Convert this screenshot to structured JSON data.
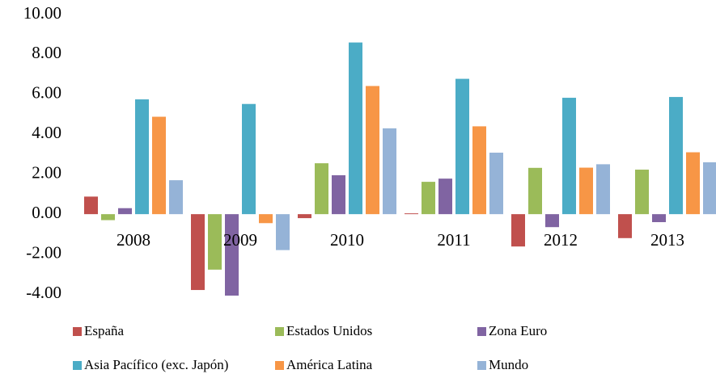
{
  "chart_data": {
    "type": "bar",
    "categories": [
      "2008",
      "2009",
      "2010",
      "2011",
      "2012",
      "2013"
    ],
    "series": [
      {
        "name": "España",
        "color": "#c0504d",
        "values": [
          0.88,
          -3.8,
          -0.2,
          0.04,
          -1.62,
          -1.2
        ]
      },
      {
        "name": "Estados Unidos",
        "color": "#9bbb59",
        "values": [
          -0.3,
          -2.78,
          2.55,
          1.62,
          2.32,
          2.23
        ]
      },
      {
        "name": "Zona Euro",
        "color": "#8064a2",
        "values": [
          0.3,
          -4.08,
          1.95,
          1.78,
          -0.65,
          -0.4
        ]
      },
      {
        "name": "Asia Pacífico (exc. Japón)",
        "color": "#4bacc6",
        "values": [
          5.75,
          5.52,
          8.6,
          6.78,
          5.83,
          5.87
        ]
      },
      {
        "name": "América Latina",
        "color": "#f79646",
        "values": [
          4.88,
          -0.45,
          6.42,
          4.4,
          2.33,
          3.1
        ]
      },
      {
        "name": "Mundo",
        "color": "#95b3d7",
        "values": [
          1.7,
          -1.8,
          4.3,
          3.08,
          2.5,
          2.6
        ]
      }
    ],
    "ylim": [
      -4,
      10
    ],
    "yticks": [
      {
        "value": 10,
        "label": "10.00"
      },
      {
        "value": 8,
        "label": "8.00"
      },
      {
        "value": 6,
        "label": "6.00"
      },
      {
        "value": 4,
        "label": "4.00"
      },
      {
        "value": 2,
        "label": "2.00"
      },
      {
        "value": 0,
        "label": "0.00"
      },
      {
        "value": -2,
        "label": "-2.00"
      },
      {
        "value": -4,
        "label": "-4.00"
      }
    ],
    "grid": false
  }
}
